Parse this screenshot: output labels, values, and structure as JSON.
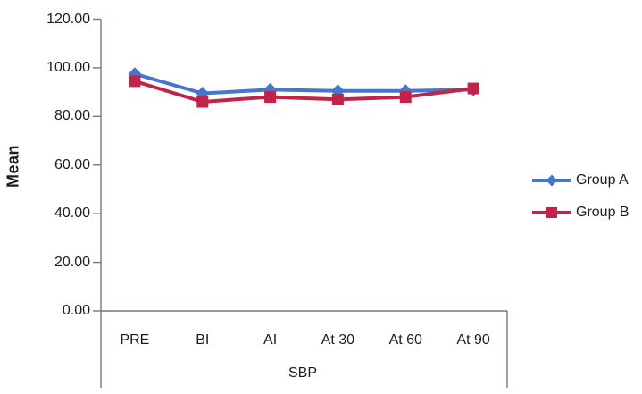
{
  "chart_data": {
    "type": "line",
    "categories": [
      "PRE",
      "BI",
      "AI",
      "At 30",
      "At 60",
      "At 90"
    ],
    "series": [
      {
        "name": "Group A",
        "color": "#4677CF",
        "marker": "diamond",
        "values": [
          97.5,
          89.5,
          91.0,
          90.5,
          90.5,
          91.0
        ]
      },
      {
        "name": "Group B",
        "color": "#C12449",
        "marker": "square",
        "values": [
          94.5,
          86.0,
          88.0,
          87.0,
          88.0,
          91.5
        ]
      }
    ],
    "title": "",
    "xlabel": "SBP",
    "ylabel": "Mean",
    "ylim": [
      0,
      120
    ],
    "ytick_step": 20,
    "ytick_labels": [
      "0.00",
      "20.00",
      "40.00",
      "60.00",
      "80.00",
      "100.00",
      "120.00"
    ],
    "grid": false,
    "legend_position": "right"
  },
  "colors": {
    "axis": "#6E7D75",
    "text": "#1C1C1C",
    "background": "#FFFFFF"
  }
}
